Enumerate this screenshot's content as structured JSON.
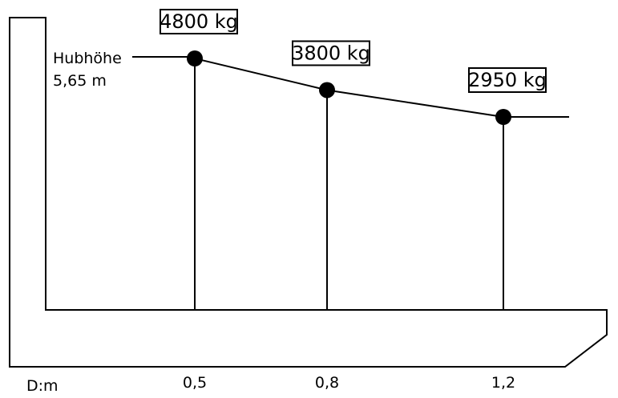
{
  "lift_height": {
    "label": "Hubhöhe",
    "value": "5,65 m"
  },
  "axis": {
    "unit_label": "D:m"
  },
  "chart_data": {
    "type": "line",
    "title": "",
    "xlabel": "D:m",
    "ylabel": "",
    "ylim": [
      0,
      6000
    ],
    "categories": [
      "0,5",
      "0,8",
      "1,2"
    ],
    "x": [
      0.5,
      0.8,
      1.2
    ],
    "values": [
      4800,
      3800,
      2950
    ],
    "point_labels": [
      "4800 kg",
      "3800 kg",
      "2950 kg"
    ]
  }
}
